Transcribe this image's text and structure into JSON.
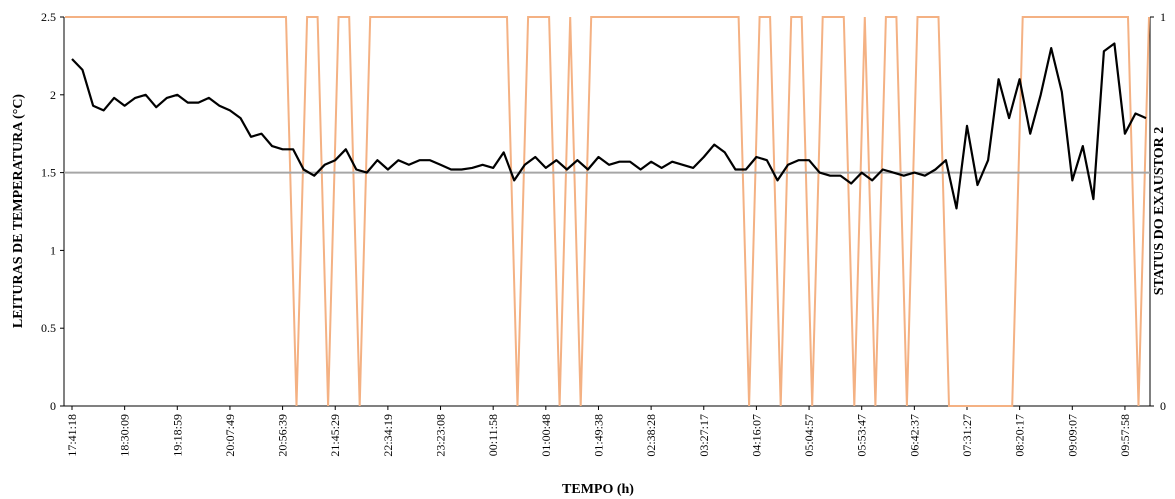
{
  "chart_data": {
    "type": "line",
    "xlabel": "TEMPO (h)",
    "ylabel_left": "LEITURAS DE TEMPERATURA (°C)",
    "ylabel_right": "STATUS DO EXAUSTOR 2",
    "ylim_left": [
      0,
      2.5
    ],
    "left_ticks": [
      "0",
      "0.5",
      "1",
      "1.5",
      "2",
      "2.5"
    ],
    "ylim_right": [
      0,
      1
    ],
    "right_ticks": [
      "0",
      "1"
    ],
    "x_tick_labels": [
      "17:41:18",
      "18:30:09",
      "19:18:59",
      "20:07:49",
      "20:56:39",
      "21:45:29",
      "22:34:19",
      "23:23:08",
      "00:11:58",
      "01:00:48",
      "01:49:38",
      "02:38:28",
      "03:27:17",
      "04:16:07",
      "05:04:57",
      "05:53:47",
      "06:42:37",
      "07:31:27",
      "08:20:17",
      "09:09:07",
      "09:57:58"
    ],
    "grid": false,
    "legend": "none",
    "colors": {
      "temperature": "#000000",
      "setpoint": "#a6a6a6",
      "status": "#f4b183"
    },
    "series": [
      {
        "axis": "left",
        "values": [
          2.23,
          2.16,
          1.93,
          1.9,
          1.98,
          1.93,
          1.98,
          2.0,
          1.92,
          1.98,
          2.0,
          1.95,
          1.95,
          1.98,
          1.93,
          1.9,
          1.85,
          1.73,
          1.75,
          1.67,
          1.65,
          1.65,
          1.52,
          1.48,
          1.55,
          1.58,
          1.65,
          1.52,
          1.5,
          1.58,
          1.52,
          1.58,
          1.55,
          1.58,
          1.58,
          1.55,
          1.52,
          1.52,
          1.53,
          1.55,
          1.53,
          1.63,
          1.45,
          1.55,
          1.6,
          1.53,
          1.58,
          1.52,
          1.58,
          1.52,
          1.6,
          1.55,
          1.57,
          1.57,
          1.52,
          1.57,
          1.53,
          1.57,
          1.55,
          1.53,
          1.6,
          1.68,
          1.63,
          1.52,
          1.52,
          1.6,
          1.58,
          1.45,
          1.55,
          1.58,
          1.58,
          1.5,
          1.48,
          1.48,
          1.43,
          1.5,
          1.45,
          1.52,
          1.5,
          1.48,
          1.5,
          1.48,
          1.52,
          1.58,
          1.27,
          1.8,
          1.42,
          1.58,
          2.1,
          1.85,
          2.1,
          1.75,
          2.0,
          2.3,
          2.02,
          1.45,
          1.67,
          1.33,
          2.28,
          2.33,
          1.75,
          1.88,
          1.85
        ]
      },
      {
        "axis": "left",
        "values": [
          1.5,
          1.5
        ]
      },
      {
        "axis": "right",
        "values": [
          1,
          1,
          1,
          1,
          1,
          1,
          1,
          1,
          1,
          1,
          1,
          1,
          1,
          1,
          1,
          1,
          1,
          1,
          1,
          1,
          1,
          1,
          0,
          1,
          1,
          0,
          1,
          1,
          0,
          1,
          1,
          1,
          1,
          1,
          1,
          1,
          1,
          1,
          1,
          1,
          1,
          1,
          1,
          0,
          1,
          1,
          1,
          0,
          1,
          0,
          1,
          1,
          1,
          1,
          1,
          1,
          1,
          1,
          1,
          1,
          1,
          1,
          1,
          1,
          1,
          0,
          1,
          1,
          0,
          1,
          1,
          0,
          1,
          1,
          1,
          0,
          1,
          0,
          1,
          1,
          0,
          1,
          1,
          1,
          0,
          0,
          0,
          0,
          0,
          0,
          0,
          1,
          1,
          1,
          1,
          1,
          1,
          1,
          1,
          1,
          1,
          1,
          0,
          1
        ]
      }
    ]
  }
}
